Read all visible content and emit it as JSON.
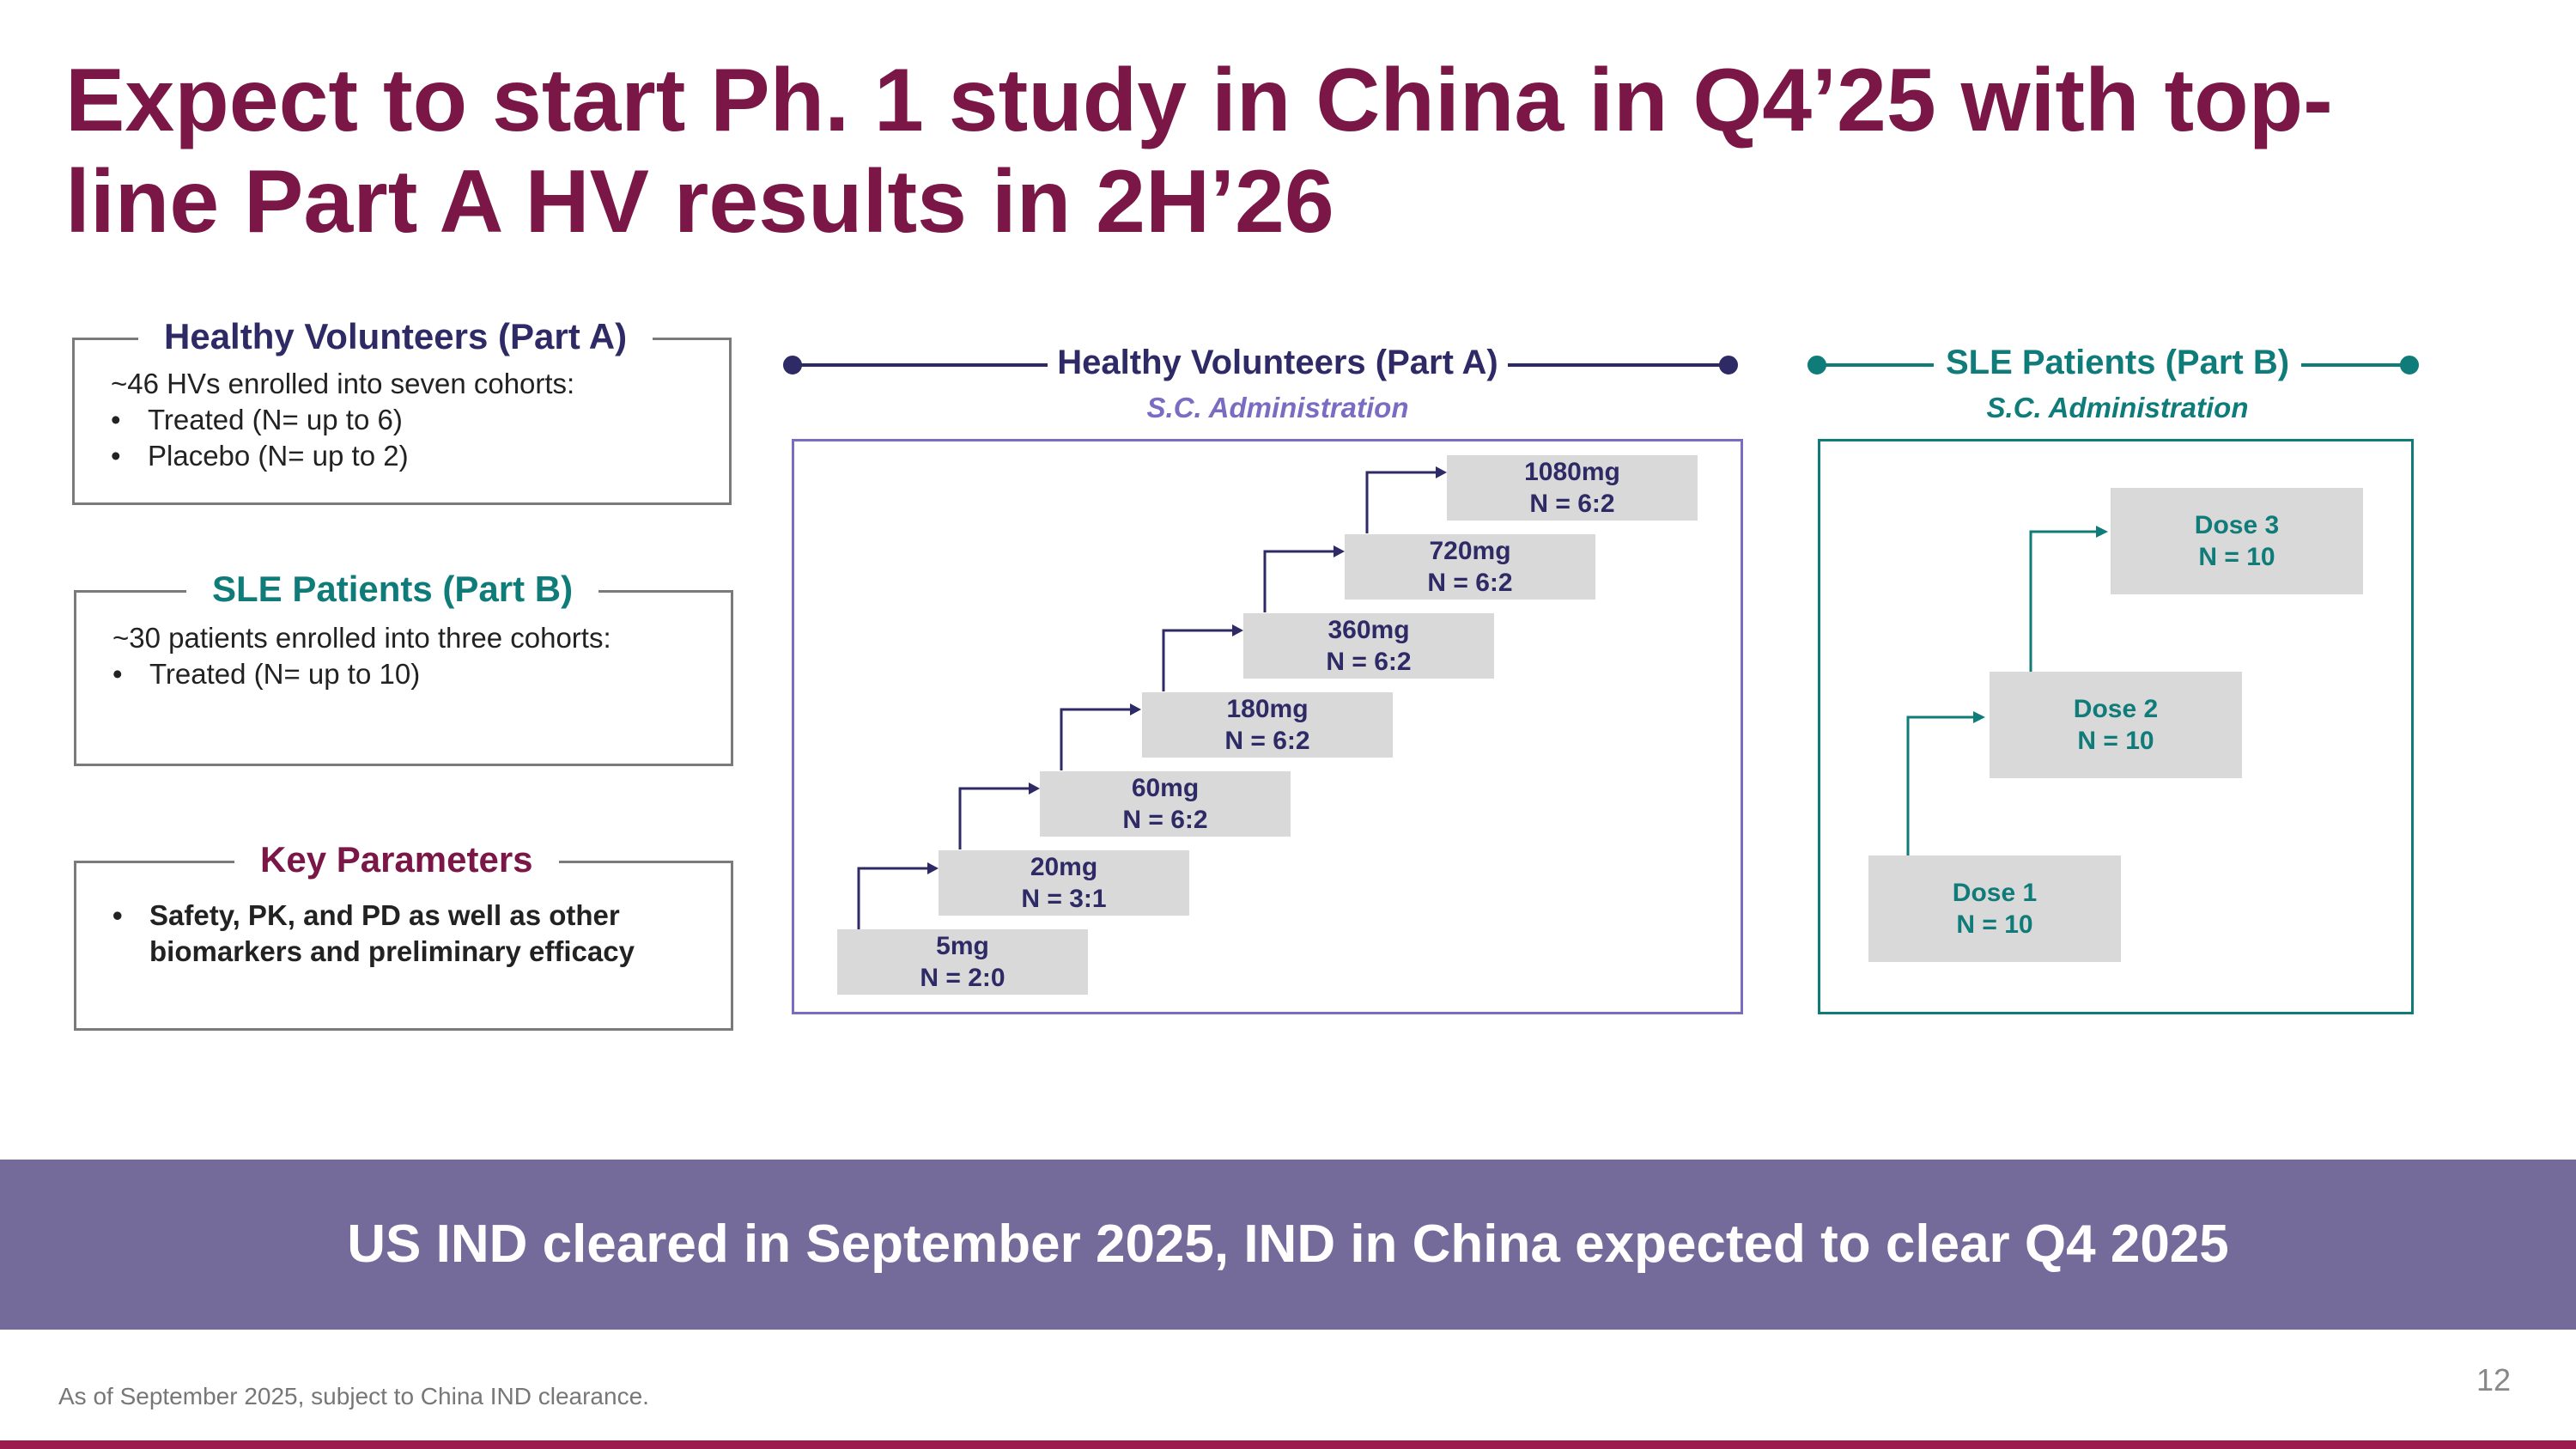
{
  "slide": {
    "title": "Expect to start Ph. 1 study in China in Q4’25 with top-line Part A HV results in 2H’26",
    "page_number": "12",
    "footnote": "As of September 2025, subject to China IND clearance.",
    "banner": "US IND cleared in September 2025, IND in China expected to clear Q4 2025"
  },
  "colors": {
    "title": "#7a1747",
    "hv": "#2e2a66",
    "sle": "#0f7c7a",
    "banner": "#756b9b",
    "bar": "#9b1b4f"
  },
  "left_panels": {
    "hv": {
      "heading": "Healthy Volunteers (Part A)",
      "intro": "~46 HVs enrolled into seven cohorts:",
      "bullets": [
        "Treated (N= up to 6)",
        "Placebo (N= up to 2)"
      ]
    },
    "sle": {
      "heading": "SLE Patients (Part B)",
      "intro": "~30 patients enrolled into three cohorts:",
      "bullets": [
        "Treated (N= up to 10)"
      ]
    },
    "params": {
      "heading": "Key Parameters",
      "bullets": [
        "Safety, PK, and PD as well as other biomarkers and preliminary efficacy"
      ]
    }
  },
  "hv_diagram": {
    "heading": "Healthy Volunteers (Part A)",
    "route": "S.C. Administration",
    "cohorts": [
      {
        "dose": "5mg",
        "n": "N = 2:0"
      },
      {
        "dose": "20mg",
        "n": "N = 3:1"
      },
      {
        "dose": "60mg",
        "n": "N = 6:2"
      },
      {
        "dose": "180mg",
        "n": "N = 6:2"
      },
      {
        "dose": "360mg",
        "n": "N = 6:2"
      },
      {
        "dose": "720mg",
        "n": "N = 6:2"
      },
      {
        "dose": "1080mg",
        "n": "N = 6:2"
      }
    ]
  },
  "sle_diagram": {
    "heading": "SLE Patients (Part B)",
    "route": "S.C. Administration",
    "cohorts": [
      {
        "dose": "Dose 1",
        "n": "N = 10"
      },
      {
        "dose": "Dose 2",
        "n": "N = 10"
      },
      {
        "dose": "Dose 3",
        "n": "N = 10"
      }
    ]
  }
}
